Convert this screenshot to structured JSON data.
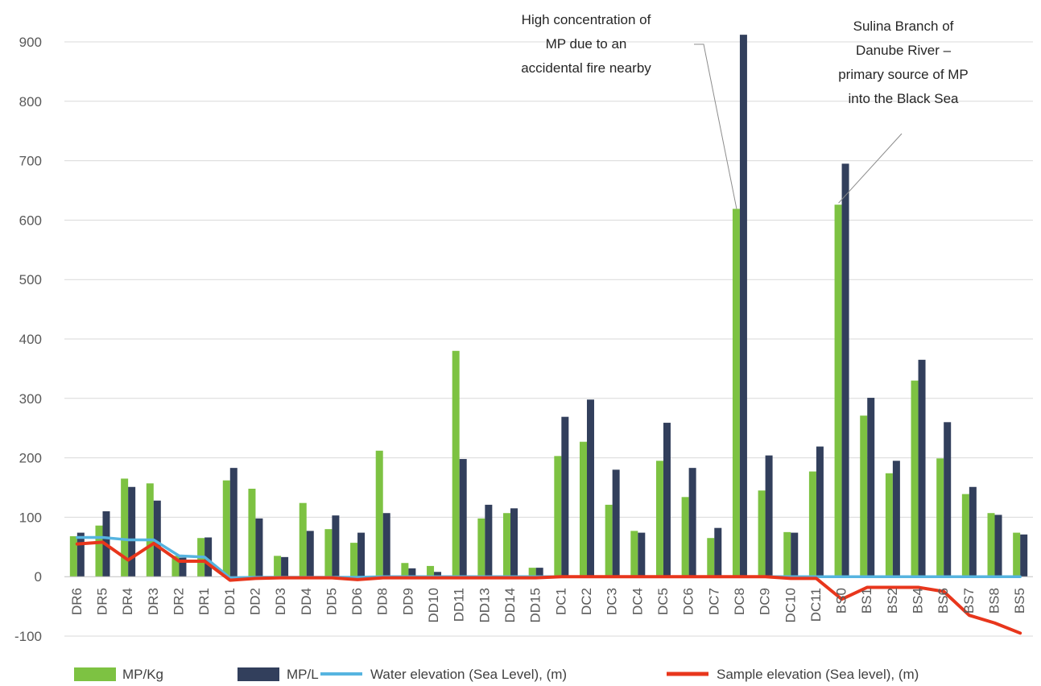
{
  "chart_data": {
    "type": "bar",
    "categories": [
      "DR6",
      "DR5",
      "DR4",
      "DR3",
      "DR2",
      "DR1",
      "DD1",
      "DD2",
      "DD3",
      "DD4",
      "DD5",
      "DD6",
      "DD8",
      "DD9",
      "DD10",
      "DD11",
      "DD13",
      "DD14",
      "DD15",
      "DC1",
      "DC2",
      "DC3",
      "DC4",
      "DC5",
      "DC6",
      "DC7",
      "DC8",
      "DC9",
      "DC10",
      "DC11",
      "BS0",
      "BS1",
      "BS2",
      "BS4",
      "BS6",
      "BS7",
      "BS8",
      "BS5"
    ],
    "ylim": [
      -100,
      900
    ],
    "yticks": [
      -100,
      0,
      100,
      200,
      300,
      400,
      500,
      600,
      700,
      800,
      900
    ],
    "grid": true,
    "legend_position": "bottom",
    "series": [
      {
        "name": "MP/Kg",
        "type": "bar",
        "color": "#7dc242",
        "values": [
          68,
          86,
          165,
          157,
          35,
          65,
          162,
          148,
          35,
          124,
          80,
          57,
          212,
          23,
          18,
          380,
          98,
          107,
          15,
          203,
          227,
          121,
          77,
          195,
          134,
          65,
          619,
          145,
          75,
          177,
          626,
          271,
          174,
          330,
          199,
          139,
          107,
          74
        ]
      },
      {
        "name": "MP/L",
        "type": "bar",
        "color": "#323f5c",
        "values": [
          74,
          110,
          151,
          128,
          32,
          66,
          183,
          98,
          33,
          77,
          103,
          74,
          107,
          14,
          8,
          198,
          121,
          115,
          15,
          269,
          298,
          180,
          74,
          259,
          183,
          82,
          912,
          204,
          74,
          219,
          695,
          301,
          195,
          365,
          260,
          151,
          104,
          71
        ]
      },
      {
        "name": "Water elevation (Sea Level), (m)",
        "type": "line",
        "color": "#56b4e0",
        "values": [
          66,
          66,
          62,
          62,
          35,
          33,
          -2,
          -1,
          -1,
          -1,
          -1,
          -1,
          0,
          0,
          0,
          0,
          0,
          0,
          0,
          0,
          0,
          0,
          0,
          0,
          0,
          0,
          0,
          0,
          0,
          0,
          0,
          0,
          0,
          0,
          0,
          0,
          0,
          0
        ]
      },
      {
        "name": "Sample elevation (Sea level), (m)",
        "type": "line",
        "color": "#e8361c",
        "values": [
          55,
          58,
          28,
          56,
          26,
          26,
          -6,
          -3,
          -2,
          -2,
          -2,
          -5,
          -2,
          -2,
          -2,
          -2,
          -2,
          -2,
          -2,
          0,
          0,
          0,
          0,
          0,
          0,
          0,
          0,
          0,
          -3,
          -3,
          -38,
          -18,
          -18,
          -18,
          -25,
          -65,
          -78,
          -95
        ]
      }
    ],
    "annotations": [
      {
        "text_lines": [
          "High concentration of",
          "MP due to an",
          "accidental fire nearby"
        ],
        "category": "DC8",
        "value": 619
      },
      {
        "text_lines": [
          "Sulina Branch of",
          "Danube River –",
          "primary source of MP",
          "into the Black Sea"
        ],
        "category": "BS0",
        "value": 626
      }
    ]
  }
}
